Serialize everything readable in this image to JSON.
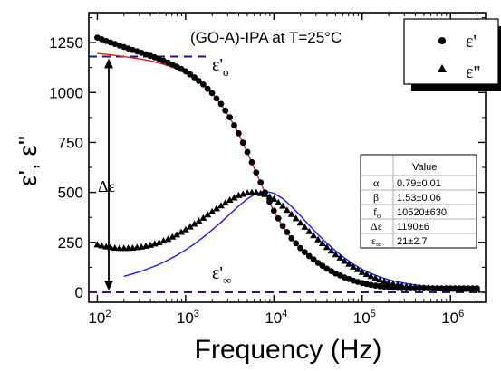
{
  "chart_data": {
    "type": "scatter",
    "title": "(GO-A)-IPA  at T=25°C",
    "xlabel": "Frequency (Hz)",
    "ylabel": "ε', ε\"",
    "x_scale": "log",
    "xlim": [
      80,
      2500000
    ],
    "ylim": [
      -50,
      1400
    ],
    "x_ticks": [
      {
        "value": 100,
        "label": "10",
        "exp": "2"
      },
      {
        "value": 1000,
        "label": "10",
        "exp": "3"
      },
      {
        "value": 10000,
        "label": "10",
        "exp": "4"
      },
      {
        "value": 100000,
        "label": "10",
        "exp": "5"
      },
      {
        "value": 1000000,
        "label": "10",
        "exp": "6"
      }
    ],
    "y_ticks": [
      0,
      250,
      500,
      750,
      1000,
      1250
    ],
    "grid": false,
    "legend": {
      "position": "top-right",
      "entries": [
        {
          "label": "ε'",
          "marker": "circle"
        },
        {
          "label": "ε\"",
          "marker": "triangle"
        }
      ]
    },
    "series": [
      {
        "name": "ε'",
        "marker": "circle",
        "x": [
          100,
          126,
          158,
          200,
          251,
          316,
          398,
          501,
          631,
          794,
          1000,
          1259,
          1585,
          1995,
          2512,
          3162,
          3981,
          5012,
          6310,
          7943,
          10000,
          12589,
          15849,
          19953,
          25119,
          31623,
          39811,
          50119,
          63096,
          79433,
          100000,
          125893,
          158489,
          199526,
          251189,
          316228,
          398107,
          501187,
          630957,
          794328,
          1000000,
          1258925,
          1584893,
          1995262
        ],
        "values": [
          1275,
          1258,
          1243,
          1228,
          1213,
          1199,
          1184,
          1168,
          1150,
          1130,
          1106,
          1076,
          1040,
          997,
          943,
          876,
          796,
          702,
          600,
          500,
          408,
          332,
          270,
          221,
          181,
          147,
          118,
          94,
          74,
          58,
          46,
          37,
          30,
          25,
          22,
          20,
          20,
          20,
          20,
          20,
          20,
          20,
          20,
          20
        ]
      },
      {
        "name": "ε\"",
        "marker": "triangle",
        "x": [
          100,
          126,
          158,
          200,
          251,
          316,
          398,
          501,
          631,
          794,
          1000,
          1259,
          1585,
          1995,
          2512,
          3162,
          3981,
          5012,
          6310,
          7943,
          10000,
          12589,
          15849,
          19953,
          25119,
          31623,
          39811,
          50119,
          63096,
          79433,
          100000,
          125893,
          158489,
          199526,
          251189,
          316228,
          398107,
          501187,
          630957,
          794328,
          1000000,
          1258925,
          1584893,
          1995262
        ],
        "values": [
          238,
          228,
          222,
          220,
          222,
          227,
          236,
          249,
          266,
          288,
          314,
          342,
          372,
          404,
          434,
          462,
          485,
          498,
          500,
          490,
          467,
          432,
          391,
          348,
          305,
          264,
          225,
          189,
          156,
          127,
          101,
          80,
          62,
          48,
          38,
          30,
          26,
          22,
          20,
          18,
          17,
          16,
          16,
          15
        ]
      },
      {
        "name": "ε' fit",
        "line_color": "#e02020",
        "x": [
          100,
          126,
          158,
          200,
          251,
          316,
          398,
          501,
          631,
          794,
          1000,
          1259,
          1585,
          1995,
          2512,
          3162,
          3981,
          5012,
          6310,
          7943,
          10000,
          12589,
          15849,
          19953,
          25119,
          31623,
          39811,
          50119,
          63096,
          79433,
          100000,
          125893,
          158489,
          199526,
          251189,
          316228,
          398107,
          501187,
          630957,
          794328,
          1000000,
          1258925,
          1584893,
          1995262
        ],
        "values": [
          1196,
          1191,
          1186,
          1180,
          1174,
          1167,
          1159,
          1148,
          1134,
          1118,
          1097,
          1071,
          1037,
          995,
          941,
          874,
          793,
          699,
          598,
          498,
          406,
          329,
          267,
          219,
          180,
          146,
          118,
          95,
          76,
          61,
          50,
          41,
          34,
          29,
          26,
          24,
          23,
          22,
          22,
          21,
          21,
          21,
          21,
          21
        ]
      },
      {
        "name": "ε\" fit",
        "line_color": "#1a1aff",
        "x": [
          200,
          251,
          316,
          398,
          501,
          631,
          794,
          1000,
          1259,
          1585,
          1995,
          2512,
          3162,
          3981,
          5012,
          6310,
          7943,
          10000,
          12589,
          15849,
          19953,
          25119,
          31623,
          39811,
          50119,
          63096,
          79433,
          100000,
          125893,
          158489,
          199526,
          251189,
          316228,
          398107,
          501187,
          630957,
          794328,
          1000000,
          1258925,
          1584893,
          1995262
        ],
        "values": [
          80,
          92,
          106,
          122,
          140,
          161,
          185,
          212,
          242,
          276,
          312,
          350,
          391,
          432,
          468,
          494,
          505,
          496,
          469,
          430,
          383,
          335,
          289,
          246,
          207,
          172,
          141,
          115,
          94,
          77,
          63,
          52,
          44,
          37,
          32,
          28,
          25,
          23,
          21,
          20,
          19
        ]
      }
    ],
    "reference_lines": [
      {
        "y": 1180,
        "label": "ε'",
        "subscript": "o"
      },
      {
        "y": 0,
        "label": "ε'",
        "subscript": "∞"
      }
    ],
    "delta_label": "Δε",
    "param_table": {
      "header": "Value",
      "rows": [
        {
          "param": "α",
          "value": "0.79±0.01"
        },
        {
          "param": "β",
          "value": "1.53±0.06"
        },
        {
          "param": "f",
          "param_sub": "o",
          "value": "10520±630"
        },
        {
          "param": "Δε",
          "value": "1190±6"
        },
        {
          "param": "ε",
          "param_sub": "∞",
          "value": "21±2.7"
        }
      ]
    },
    "colors": {
      "fit_real": "#e02020",
      "fit_imag": "#1a1aff",
      "ref_line": "#1a1a8a"
    }
  }
}
